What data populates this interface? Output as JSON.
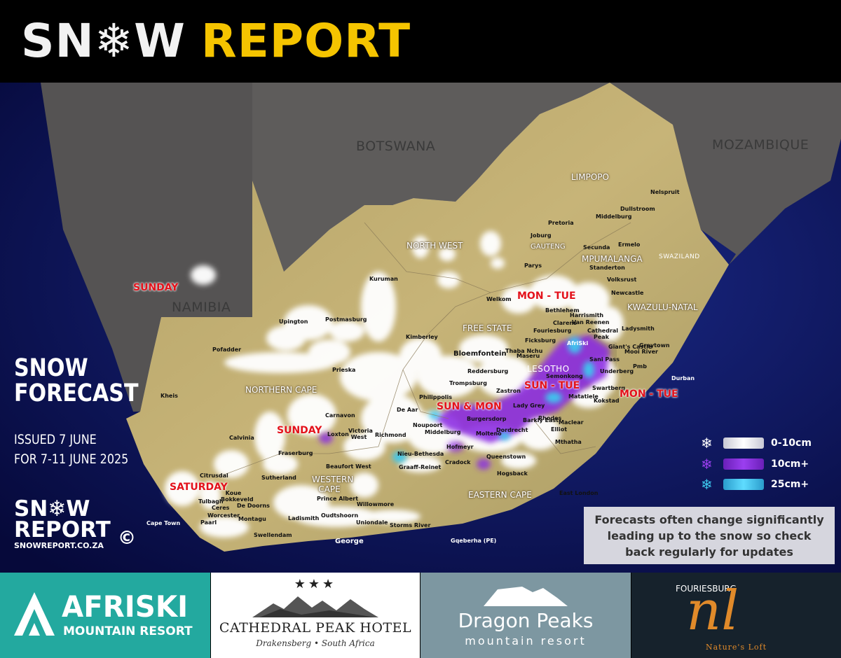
{
  "header": {
    "logo_snow": "SN❄W",
    "logo_report": "REPORT"
  },
  "map": {
    "countries": [
      "BOTSWANA",
      "MOZAMBIQUE",
      "NAMIBIA",
      "LESOTHO",
      "SWAZILAND"
    ],
    "provinces": [
      "LIMPOPO",
      "NORTH WEST",
      "GAUTENG",
      "MPUMALANGA",
      "FREE STATE",
      "KWAZULU-NATAL",
      "NORTHERN CAPE",
      "WESTERN CAPE",
      "EASTERN CAPE"
    ],
    "towns": [
      "Pretoria",
      "Joburg",
      "Middelburg",
      "Dullstroom",
      "Nelspruit",
      "Secunda",
      "Ermelo",
      "Standerton",
      "Parys",
      "Volksrust",
      "Newcastle",
      "Kuruman",
      "Welkom",
      "Bethlehem",
      "Harrismith",
      "Van Reenen",
      "Clarens",
      "Fouriesburg",
      "Ficksburg",
      "Cathedral Peak",
      "AfriSki",
      "Giant's Castle",
      "Mooi River",
      "Ladysmith",
      "Greytown",
      "Sani Pass",
      "Pmb",
      "Underberg",
      "Durban",
      "Upington",
      "Postmasburg",
      "Kimberley",
      "Bloemfontein",
      "Thaba Nchu",
      "Maseru",
      "Semonkong",
      "Reddersburg",
      "Trompsburg",
      "Zastron",
      "Swartberg",
      "Matatiele",
      "Kokstad",
      "Pofadder",
      "Prieska",
      "Philippolis",
      "De Aar",
      "Lady Grey",
      "Burgersdorp",
      "Rhodes",
      "Barkly East",
      "Maclear",
      "Elliot",
      "Noupoort",
      "Molteno",
      "Dordrecht",
      "Mthatha",
      "Kheis",
      "Carnavon",
      "Loxton",
      "Victoria West",
      "Richmond",
      "Middelburg",
      "Hofmeyr",
      "Nieu-Bethesda",
      "Cradock",
      "Queenstown",
      "Graaff-Reinet",
      "Calvinia",
      "Fraserburg",
      "Beaufort West",
      "Sutherland",
      "Hogsback",
      "East London",
      "Citrusdal",
      "Koue Bokkeveld",
      "Tulbagh",
      "Ceres",
      "De Doorns",
      "Worcester",
      "Montagu",
      "Paarl",
      "Cape Town",
      "Prince Albert",
      "Ladismith",
      "Oudtshoorn",
      "Willowmore",
      "Uniondale",
      "Storms River",
      "Swellendam",
      "George",
      "Gqeberha (PE)"
    ],
    "days": [
      "SUNDAY",
      "MON - TUE",
      "SUN - TUE",
      "MON - TUE",
      "SUN & MON",
      "SUNDAY",
      "SATURDAY"
    ]
  },
  "forecast": {
    "title_line1": "SNOW",
    "title_line2": "FORECAST",
    "issued_line1": "ISSUED 7 JUNE",
    "issued_line2": "FOR 7-11 JUNE 2025"
  },
  "small_logo": {
    "line1": "SN❄W",
    "line2": "REPORT",
    "copyright": "©",
    "url": "SNOWREPORT.CO.ZA"
  },
  "legend": [
    {
      "label": "0-10cm",
      "color": "#e6e6ee",
      "icon": "snowflake-icon"
    },
    {
      "label": "10cm+",
      "color": "#8a2be2",
      "icon": "snowflake-icon"
    },
    {
      "label": "25cm+",
      "color": "#3cc8ee",
      "icon": "snowflake-icon"
    }
  ],
  "note": {
    "line1": "Forecasts often change significantly",
    "line2": "leading up to the snow so check",
    "line3": "back regularly for updates"
  },
  "sponsors": {
    "afriski": {
      "name": "AFRISKI",
      "sub": "MOUNTAIN RESORT"
    },
    "cathedral": {
      "stars": "★★★",
      "name": "CATHEDRAL PEAK HOTEL",
      "sub": "Drakensberg • South Africa"
    },
    "dragon": {
      "name": "Dragon Peaks",
      "sub": "mountain resort"
    },
    "natures_loft": {
      "top": "FOURIESBURG",
      "mark": "nl",
      "name": "Nature's Loft"
    }
  },
  "colors": {
    "ocean": "#0c1550",
    "land": "#c0ad6e",
    "neighbor": "#595757",
    "accent": "#f5c400",
    "day_label": "#e3121b"
  }
}
